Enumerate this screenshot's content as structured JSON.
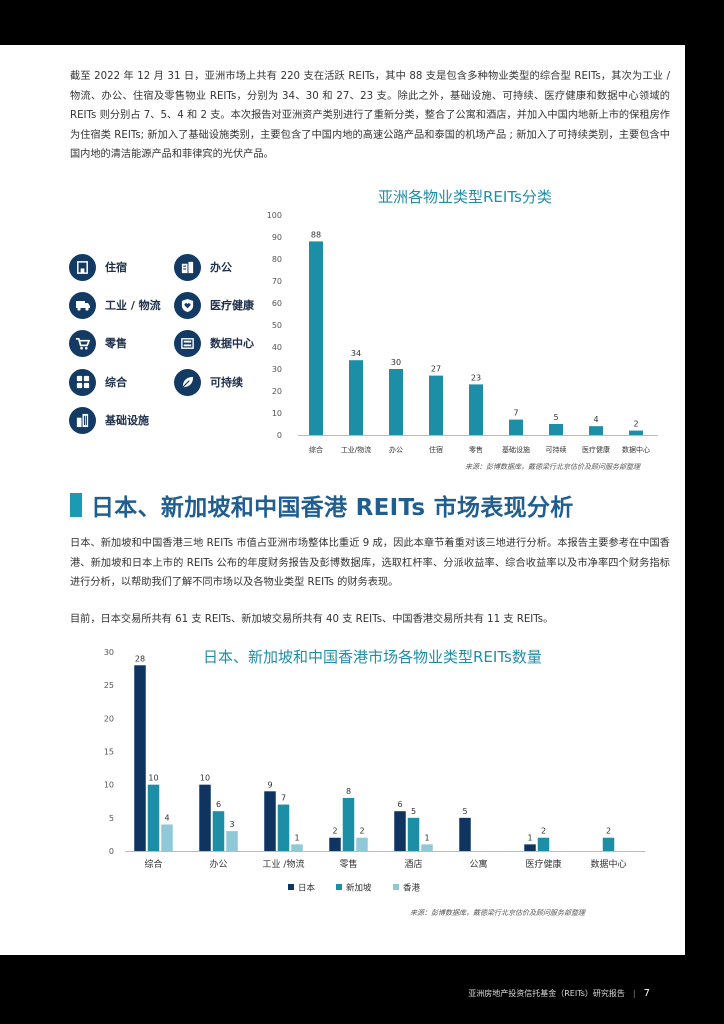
{
  "paragraphs": {
    "intro": "截至 2022 年 12 月 31 日，亚洲市场上共有 220 支在活跃 REITs，其中 88 支是包含多种物业类型的综合型 REITs，其次为工业 / 物流、办公、住宿及零售物业 REITs，分别为 34、30 和 27、23 支。除此之外，基础设施、可持续、医疗健康和数据中心领域的 REITs 则分别占 7、5、4 和 2 支。本次报告对亚洲资产类别进行了重新分类，整合了公寓和酒店，并加入中国内地新上市的保租房作为住宿类 REITs; 新加入了基础设施类别，主要包含了中国内地的高速公路产品和泰国的机场产品 ; 新加入了可持续类别，主要包含中国内地的清洁能源产品和菲律宾的光伏产品。",
    "section": "日本、新加坡和中国香港三地 REITs 市值占亚洲市场整体比重近 9 成，因此本章节着重对该三地进行分析。本报告主要参考在中国香港、新加坡和日本上市的 REITs 公布的年度财务报告及彭博数据库，选取杠杆率、分派收益率、综合收益率以及市净率四个财务指标进行分析，以帮助我们了解不同市场以及各物业类型 REITs 的财务表现。",
    "count": "目前，日本交易所共有 61 支 REITs、新加坡交易所共有 40 支 REITs、中国香港交易所共有 11 支 REITs。"
  },
  "section_title": "日本、新加坡和中国香港 REITs 市场表现分析",
  "icon_legend": [
    {
      "label": "住宿",
      "icon": "bed-icon"
    },
    {
      "label": "办公",
      "icon": "office-building-icon"
    },
    {
      "label": "工业 / 物流",
      "icon": "truck-icon"
    },
    {
      "label": "医疗健康",
      "icon": "heart-shield-icon"
    },
    {
      "label": "零售",
      "icon": "shopping-cart-icon"
    },
    {
      "label": "数据中心",
      "icon": "server-icon"
    },
    {
      "label": "综合",
      "icon": "grid-icon"
    },
    {
      "label": "可持续",
      "icon": "leaf-icon"
    },
    {
      "label": "基础设施",
      "icon": "buildings-icon"
    }
  ],
  "source1": "来源：彭博数据库，戴德梁行北京估价及顾问服务部整理",
  "source2": "来源：彭博数据库，戴德梁行北京估价及顾问服务部整理",
  "footer": {
    "report": "亚洲房地产投资信托基金（REITs）研究报告",
    "page": "7"
  },
  "colors": {
    "teal": "#1c8fa6",
    "navy": "#0f3460",
    "light": "#8fc9d8",
    "axis": "#555555"
  },
  "chart_data": [
    {
      "type": "bar",
      "title": "亚洲各物业类型REITs分类",
      "categories": [
        "综合",
        "工业/物流",
        "办公",
        "住宿",
        "零售",
        "基础设施",
        "可持续",
        "医疗健康",
        "数据中心"
      ],
      "values": [
        88,
        34,
        30,
        27,
        23,
        7,
        5,
        4,
        2
      ],
      "yticks": [
        0,
        10,
        20,
        30,
        40,
        50,
        60,
        70,
        80,
        90,
        100
      ],
      "ylim": [
        0,
        100
      ]
    },
    {
      "type": "bar",
      "title": "日本、新加坡和中国香港市场各物业类型REITs数量",
      "categories": [
        "综合",
        "办公",
        "工业 /物流",
        "零售",
        "酒店",
        "公寓",
        "医疗健康",
        "数据中心"
      ],
      "series": [
        {
          "name": "日本",
          "values": [
            28,
            10,
            9,
            2,
            6,
            5,
            1,
            null
          ]
        },
        {
          "name": "新加坡",
          "values": [
            10,
            6,
            7,
            8,
            5,
            null,
            2,
            2
          ]
        },
        {
          "name": "香港",
          "values": [
            4,
            3,
            1,
            2,
            1,
            null,
            null,
            null
          ]
        }
      ],
      "yticks": [
        0,
        5,
        10,
        15,
        20,
        25,
        30
      ],
      "ylim": [
        0,
        30
      ],
      "legend_position": "bottom"
    }
  ]
}
